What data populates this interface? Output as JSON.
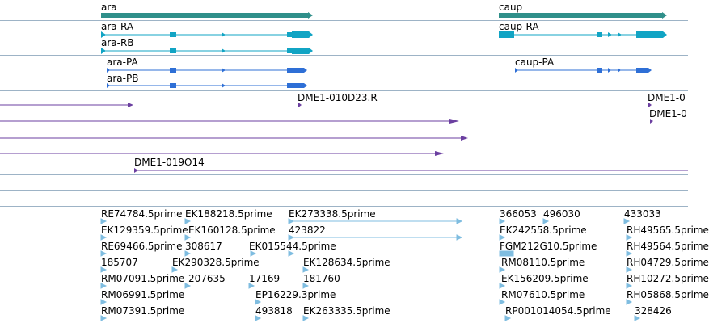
{
  "tracks": {
    "genes": [
      {
        "name": "ara"
      },
      {
        "name": "caup"
      }
    ],
    "transcripts": [
      {
        "name": "ara-RA"
      },
      {
        "name": "ara-RB"
      },
      {
        "name": "caup-RA"
      }
    ],
    "proteins": [
      {
        "name": "ara-PA"
      },
      {
        "name": "ara-PB"
      },
      {
        "name": "caup-PA"
      }
    ],
    "clones": [
      {
        "name": "DME1-010D23.R"
      },
      {
        "name": "DME1-0"
      },
      {
        "name": "DME1-0"
      },
      {
        "name": "DME1-019O14"
      }
    ],
    "ests": [
      "RE74784.5prime",
      "EK188218.5prime",
      "EK273338.5prime",
      "366053",
      "496030",
      "433033",
      "EK129359.5prime",
      "EK160128.5prime",
      "423822",
      "EK242558.5prime",
      "RH49565.5prime",
      "RE69466.5prime",
      "308617",
      "EK015544.5prime",
      "FGM212G10.5prime",
      "RH49564.5prime",
      "185707",
      "EK290328.5prime",
      "EK128634.5prime",
      "RM08110.5prime",
      "RH04729.5prime",
      "RM07091.5prime",
      "207635",
      "17169",
      "181760",
      "EK156209.5prime",
      "RH10272.5prime",
      "RM06991.5prime",
      "EP16229.3prime",
      "RM07610.5prime",
      "RH05868.5prime",
      "RM07391.5prime",
      "493818",
      "EK263335.5prime",
      "RP001014054.5prime",
      "328426"
    ]
  },
  "colors": {
    "gene": "#2f8f8a",
    "transcript": "#11a4c4",
    "protein": "#2e6fd6",
    "clone": "#6b3fa0",
    "est": "#7fbde0",
    "separator": "#9db3c6"
  }
}
